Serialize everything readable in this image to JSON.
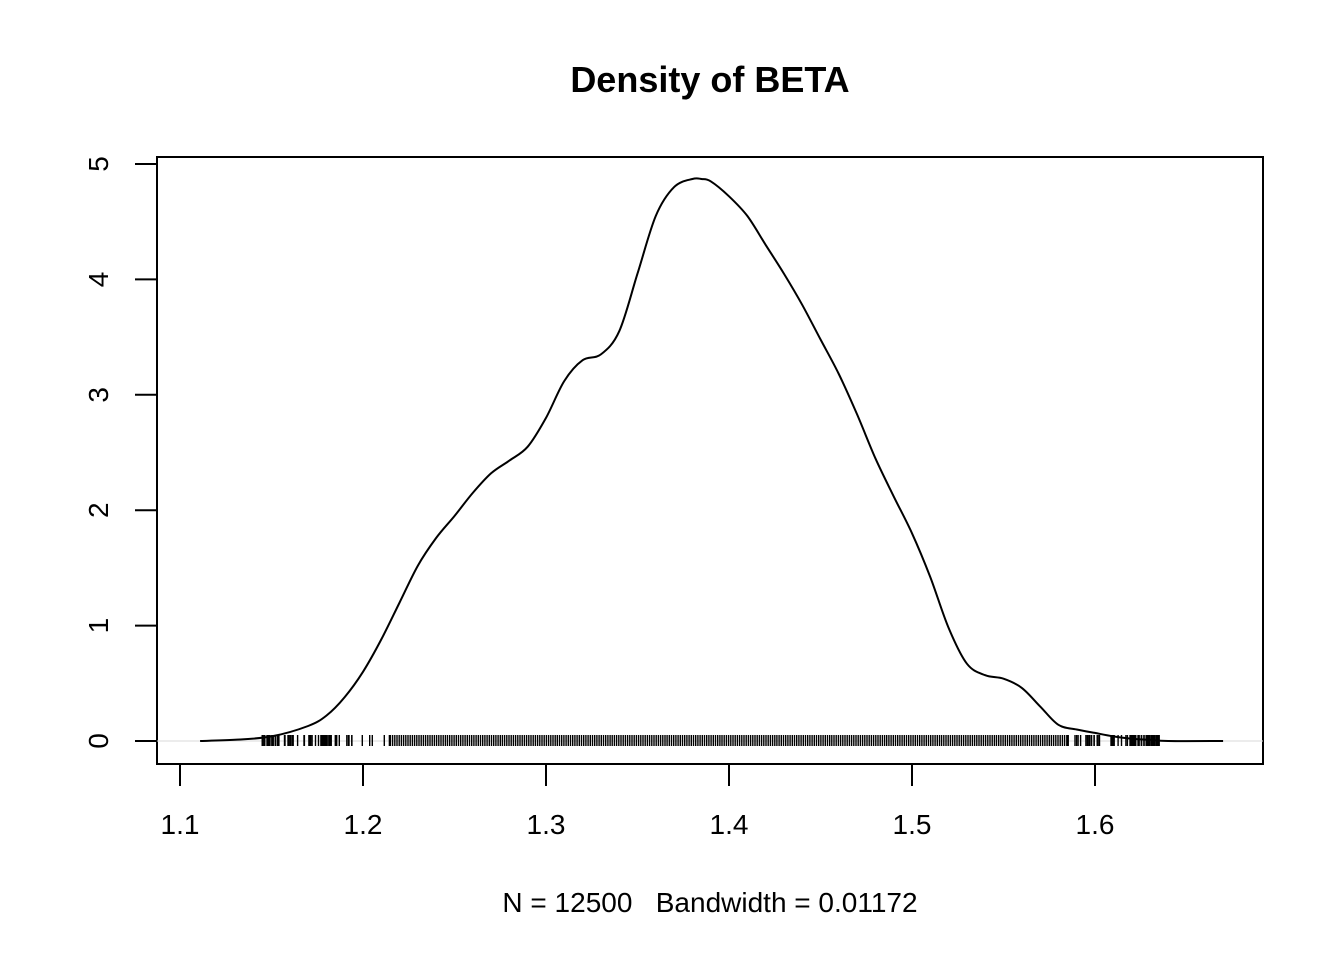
{
  "chart_data": {
    "type": "line",
    "title": "Density of BETA",
    "xlabel": "N = 12500   Bandwidth = 0.01172",
    "ylabel": "",
    "xlim": [
      1.1,
      1.67
    ],
    "ylim": [
      0,
      5
    ],
    "x_ticks": [
      "1.1",
      "1.2",
      "1.3",
      "1.4",
      "1.5",
      "1.6"
    ],
    "y_ticks": [
      "0",
      "1",
      "2",
      "3",
      "4",
      "5"
    ],
    "grid": false,
    "legend": "none",
    "series": [
      {
        "x": [
          1.111,
          1.13,
          1.15,
          1.17,
          1.18,
          1.19,
          1.2,
          1.21,
          1.22,
          1.23,
          1.24,
          1.25,
          1.26,
          1.27,
          1.28,
          1.29,
          1.3,
          1.31,
          1.32,
          1.33,
          1.34,
          1.35,
          1.36,
          1.37,
          1.38,
          1.385,
          1.39,
          1.4,
          1.41,
          1.42,
          1.43,
          1.44,
          1.45,
          1.46,
          1.47,
          1.48,
          1.49,
          1.5,
          1.51,
          1.52,
          1.53,
          1.54,
          1.55,
          1.56,
          1.57,
          1.58,
          1.59,
          1.6,
          1.61,
          1.62,
          1.63,
          1.64,
          1.67
        ],
        "y": [
          0.0,
          0.01,
          0.04,
          0.13,
          0.22,
          0.38,
          0.6,
          0.88,
          1.2,
          1.52,
          1.76,
          1.95,
          2.15,
          2.32,
          2.43,
          2.55,
          2.8,
          3.12,
          3.3,
          3.35,
          3.55,
          4.05,
          4.55,
          4.8,
          4.87,
          4.87,
          4.85,
          4.72,
          4.55,
          4.3,
          4.05,
          3.78,
          3.48,
          3.18,
          2.83,
          2.45,
          2.12,
          1.8,
          1.42,
          0.98,
          0.67,
          0.57,
          0.54,
          0.46,
          0.3,
          0.14,
          0.1,
          0.07,
          0.04,
          0.02,
          0.01,
          0.0,
          0.0
        ]
      }
    ],
    "rug": {
      "min": 1.145,
      "max": 1.635,
      "count": 12500
    }
  }
}
